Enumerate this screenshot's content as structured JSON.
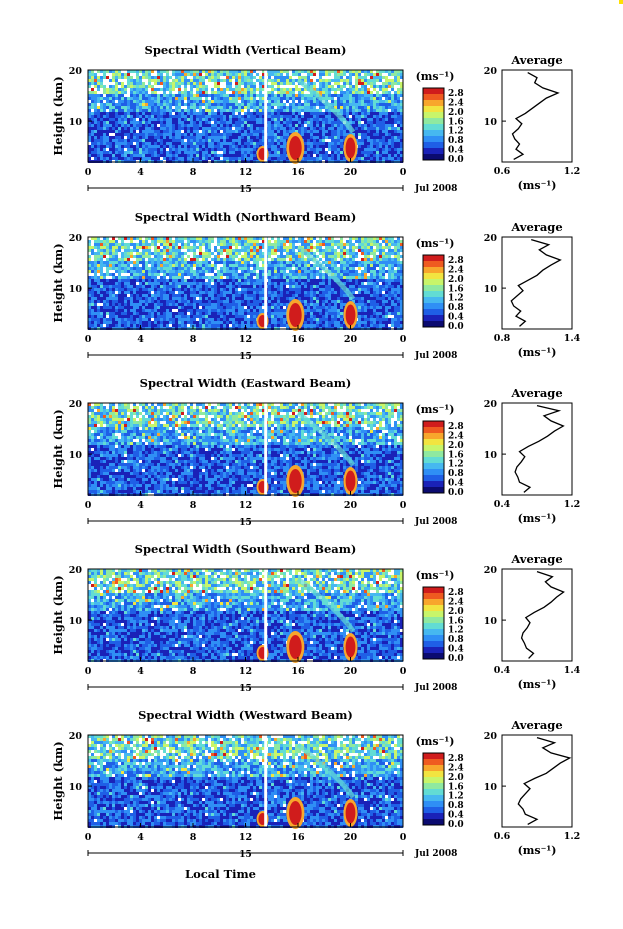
{
  "figure": {
    "xlabel": "Local Time"
  },
  "chart_data": [
    {
      "type": "heatmap",
      "title": "Spectral Width (Vertical Beam)",
      "ylabel": "Height (km)",
      "x_ticks": [
        "0",
        "4",
        "8",
        "12",
        "16",
        "20",
        "0"
      ],
      "y_ticks": [
        "20",
        "10"
      ],
      "xlim": [
        0,
        24
      ],
      "ylim": [
        2,
        20
      ],
      "date_day": "15",
      "date_month": "Jul 2008",
      "colorbar": {
        "unit": "(ms⁻¹)",
        "ticks": [
          "2.8",
          "2.4",
          "2.0",
          "1.6",
          "1.2",
          "0.8",
          "0.4",
          "0.0"
        ]
      },
      "profile": {
        "title": "Average",
        "x_ticks": [
          "0.6",
          "1.2"
        ],
        "xlim": [
          0.6,
          1.2
        ],
        "xlabel": "(ms⁻¹)",
        "y_ticks": [
          "20",
          "10"
        ],
        "heights": [
          2.5,
          3.5,
          4.5,
          5.5,
          6.5,
          7.5,
          8.5,
          9.5,
          10.5,
          11.5,
          12.5,
          13.5,
          14.5,
          15.5,
          16.5,
          17.5,
          18.5,
          19.5
        ],
        "values": [
          0.7,
          0.78,
          0.72,
          0.75,
          0.71,
          0.69,
          0.74,
          0.77,
          0.72,
          0.8,
          0.86,
          0.92,
          0.98,
          1.08,
          0.95,
          0.88,
          0.9,
          0.82
        ]
      }
    },
    {
      "type": "heatmap",
      "title": "Spectral Width (Northward Beam)",
      "ylabel": "Height (km)",
      "x_ticks": [
        "0",
        "4",
        "8",
        "12",
        "16",
        "20",
        "0"
      ],
      "y_ticks": [
        "20",
        "10"
      ],
      "xlim": [
        0,
        24
      ],
      "ylim": [
        2,
        20
      ],
      "date_day": "15",
      "date_month": "Jul 2008",
      "colorbar": {
        "unit": "(ms⁻¹)",
        "ticks": [
          "2.8",
          "2.4",
          "2.0",
          "1.6",
          "1.2",
          "0.8",
          "0.4",
          "0.0"
        ]
      },
      "profile": {
        "title": "Average",
        "x_ticks": [
          "0.8",
          "1.4"
        ],
        "xlim": [
          0.8,
          1.4
        ],
        "xlabel": "(ms⁻¹)",
        "y_ticks": [
          "20",
          "10"
        ],
        "heights": [
          2.5,
          3.5,
          4.5,
          5.5,
          6.5,
          7.5,
          8.5,
          9.5,
          10.5,
          11.5,
          12.5,
          13.5,
          14.5,
          15.5,
          16.5,
          17.5,
          18.5,
          19.5
        ],
        "values": [
          0.95,
          1.0,
          0.92,
          0.96,
          0.9,
          0.88,
          0.93,
          0.98,
          0.94,
          1.02,
          1.1,
          1.15,
          1.22,
          1.3,
          1.18,
          1.12,
          1.2,
          1.05
        ]
      }
    },
    {
      "type": "heatmap",
      "title": "Spectral Width (Eastward Beam)",
      "ylabel": "Height (km)",
      "x_ticks": [
        "0",
        "4",
        "8",
        "12",
        "16",
        "20",
        "0"
      ],
      "y_ticks": [
        "20",
        "10"
      ],
      "xlim": [
        0,
        24
      ],
      "ylim": [
        2,
        20
      ],
      "date_day": "15",
      "date_month": "Jul 2008",
      "colorbar": {
        "unit": "(ms⁻¹)",
        "ticks": [
          "2.8",
          "2.4",
          "2.0",
          "1.6",
          "1.2",
          "0.8",
          "0.4",
          "0.0"
        ]
      },
      "profile": {
        "title": "Average",
        "x_ticks": [
          "0.4",
          "1.2"
        ],
        "xlim": [
          0.4,
          1.2
        ],
        "xlabel": "(ms⁻¹)",
        "y_ticks": [
          "20",
          "10"
        ],
        "heights": [
          2.5,
          3.5,
          4.5,
          5.5,
          6.5,
          7.5,
          8.5,
          9.5,
          10.5,
          11.5,
          12.5,
          13.5,
          14.5,
          15.5,
          16.5,
          17.5,
          18.5,
          19.5
        ],
        "values": [
          0.65,
          0.72,
          0.6,
          0.58,
          0.55,
          0.57,
          0.62,
          0.66,
          0.6,
          0.7,
          0.82,
          0.92,
          1.0,
          1.1,
          0.96,
          0.88,
          1.05,
          0.8
        ]
      }
    },
    {
      "type": "heatmap",
      "title": "Spectral Width (Southward Beam)",
      "ylabel": "Height (km)",
      "x_ticks": [
        "0",
        "4",
        "8",
        "12",
        "16",
        "20",
        "0"
      ],
      "y_ticks": [
        "20",
        "10"
      ],
      "xlim": [
        0,
        24
      ],
      "ylim": [
        2,
        20
      ],
      "date_day": "15",
      "date_month": "Jul 2008",
      "colorbar": {
        "unit": "(ms⁻¹)",
        "ticks": [
          "2.8",
          "2.4",
          "2.0",
          "1.6",
          "1.2",
          "0.8",
          "0.4",
          "0.0"
        ]
      },
      "profile": {
        "title": "Average",
        "x_ticks": [
          "0.4",
          "1.4"
        ],
        "xlim": [
          0.4,
          1.4
        ],
        "xlabel": "(ms⁻¹)",
        "y_ticks": [
          "20",
          "10"
        ],
        "heights": [
          2.5,
          3.5,
          4.5,
          5.5,
          6.5,
          7.5,
          8.5,
          9.5,
          10.5,
          11.5,
          12.5,
          13.5,
          14.5,
          15.5,
          16.5,
          17.5,
          18.5,
          19.5
        ],
        "values": [
          0.78,
          0.85,
          0.75,
          0.72,
          0.68,
          0.7,
          0.76,
          0.8,
          0.74,
          0.86,
          1.0,
          1.1,
          1.18,
          1.28,
          1.1,
          1.02,
          1.12,
          0.9
        ]
      }
    },
    {
      "type": "heatmap",
      "title": "Spectral Width (Westward Beam)",
      "ylabel": "Height (km)",
      "x_ticks": [
        "0",
        "4",
        "8",
        "12",
        "16",
        "20",
        "0"
      ],
      "y_ticks": [
        "20",
        "10"
      ],
      "xlim": [
        0,
        24
      ],
      "ylim": [
        2,
        20
      ],
      "date_day": "15",
      "date_month": "Jul 2008",
      "colorbar": {
        "unit": "(ms⁻¹)",
        "ticks": [
          "2.8",
          "2.4",
          "2.0",
          "1.6",
          "1.2",
          "0.8",
          "0.4",
          "0.0"
        ]
      },
      "profile": {
        "title": "Average",
        "x_ticks": [
          "0.6",
          "1.2"
        ],
        "xlim": [
          0.6,
          1.2
        ],
        "xlabel": "(ms⁻¹)",
        "y_ticks": [
          "20",
          "10"
        ],
        "heights": [
          2.5,
          3.5,
          4.5,
          5.5,
          6.5,
          7.5,
          8.5,
          9.5,
          10.5,
          11.5,
          12.5,
          13.5,
          14.5,
          15.5,
          16.5,
          17.5,
          18.5,
          19.5
        ],
        "values": [
          0.82,
          0.9,
          0.8,
          0.78,
          0.74,
          0.76,
          0.8,
          0.84,
          0.79,
          0.88,
          0.98,
          1.04,
          1.1,
          1.18,
          1.02,
          0.95,
          1.05,
          0.9
        ]
      }
    }
  ]
}
